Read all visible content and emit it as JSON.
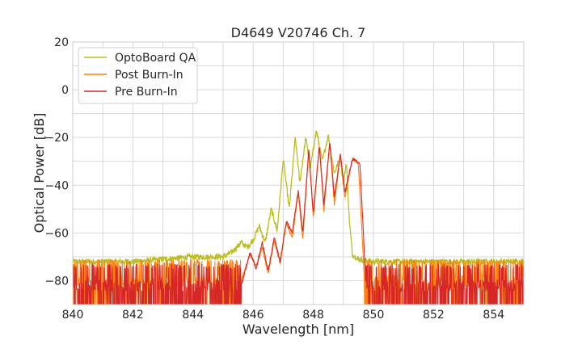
{
  "chart_data": {
    "type": "line",
    "title": "D4649 V20746 Ch. 7",
    "xlabel": "Wavelength [nm]",
    "ylabel": "Optical Power [dB]",
    "xlim": [
      840,
      855
    ],
    "ylim": [
      -90,
      20
    ],
    "xticks": [
      "840",
      "842",
      "844",
      "846",
      "848",
      "850",
      "852",
      "854"
    ],
    "yticks": [
      "−80",
      "−60",
      "−40",
      "−20",
      "0",
      "20"
    ],
    "grid": true,
    "legend_position": "top-left",
    "series": [
      {
        "name": "OptoBoard QA",
        "color": "#bcbd22",
        "noise_floor": -72,
        "points": [
          [
            840,
            -72
          ],
          [
            842,
            -72
          ],
          [
            844,
            -70
          ],
          [
            845,
            -70
          ],
          [
            845.3,
            -68
          ],
          [
            845.6,
            -64
          ],
          [
            845.8,
            -66
          ],
          [
            846.0,
            -63
          ],
          [
            846.2,
            -57
          ],
          [
            846.4,
            -64
          ],
          [
            846.6,
            -50
          ],
          [
            846.8,
            -59
          ],
          [
            847.0,
            -29
          ],
          [
            847.2,
            -50
          ],
          [
            847.4,
            -20
          ],
          [
            847.55,
            -39
          ],
          [
            847.75,
            -20
          ],
          [
            847.9,
            -33
          ],
          [
            848.1,
            -17
          ],
          [
            848.3,
            -30
          ],
          [
            848.5,
            -19
          ],
          [
            848.7,
            -35
          ],
          [
            848.9,
            -28
          ],
          [
            849.0,
            -40
          ],
          [
            849.1,
            -30
          ],
          [
            849.2,
            -55
          ],
          [
            849.3,
            -69
          ],
          [
            849.5,
            -71
          ],
          [
            850,
            -72
          ],
          [
            852,
            -72
          ],
          [
            855,
            -72
          ]
        ]
      },
      {
        "name": "Post Burn-In",
        "color": "#ff7f0e",
        "noise_floor": -80,
        "points": [
          [
            845.6,
            -80
          ],
          [
            845.9,
            -69
          ],
          [
            846.1,
            -74
          ],
          [
            846.3,
            -66
          ],
          [
            846.5,
            -77
          ],
          [
            846.7,
            -63
          ],
          [
            846.9,
            -73
          ],
          [
            847.1,
            -56
          ],
          [
            847.3,
            -62
          ],
          [
            847.5,
            -43
          ],
          [
            847.65,
            -63
          ],
          [
            847.85,
            -25
          ],
          [
            848.0,
            -54
          ],
          [
            848.2,
            -23
          ],
          [
            848.35,
            -51
          ],
          [
            848.55,
            -22
          ],
          [
            848.7,
            -48
          ],
          [
            848.9,
            -27
          ],
          [
            849.05,
            -45
          ],
          [
            849.3,
            -29
          ],
          [
            849.5,
            -31
          ],
          [
            849.7,
            -80
          ]
        ]
      },
      {
        "name": "Pre Burn-In",
        "color": "#d62728",
        "noise_floor": -82,
        "points": [
          [
            845.6,
            -82
          ],
          [
            845.9,
            -68
          ],
          [
            846.1,
            -75
          ],
          [
            846.3,
            -64
          ],
          [
            846.5,
            -76
          ],
          [
            846.7,
            -62
          ],
          [
            846.9,
            -72
          ],
          [
            847.1,
            -55
          ],
          [
            847.3,
            -60
          ],
          [
            847.5,
            -42
          ],
          [
            847.65,
            -60
          ],
          [
            847.85,
            -25
          ],
          [
            848.0,
            -52
          ],
          [
            848.2,
            -23
          ],
          [
            848.35,
            -48
          ],
          [
            848.55,
            -22
          ],
          [
            848.7,
            -45
          ],
          [
            848.9,
            -27
          ],
          [
            849.05,
            -43
          ],
          [
            849.3,
            -29
          ],
          [
            849.55,
            -31
          ],
          [
            849.75,
            -82
          ]
        ]
      }
    ]
  }
}
